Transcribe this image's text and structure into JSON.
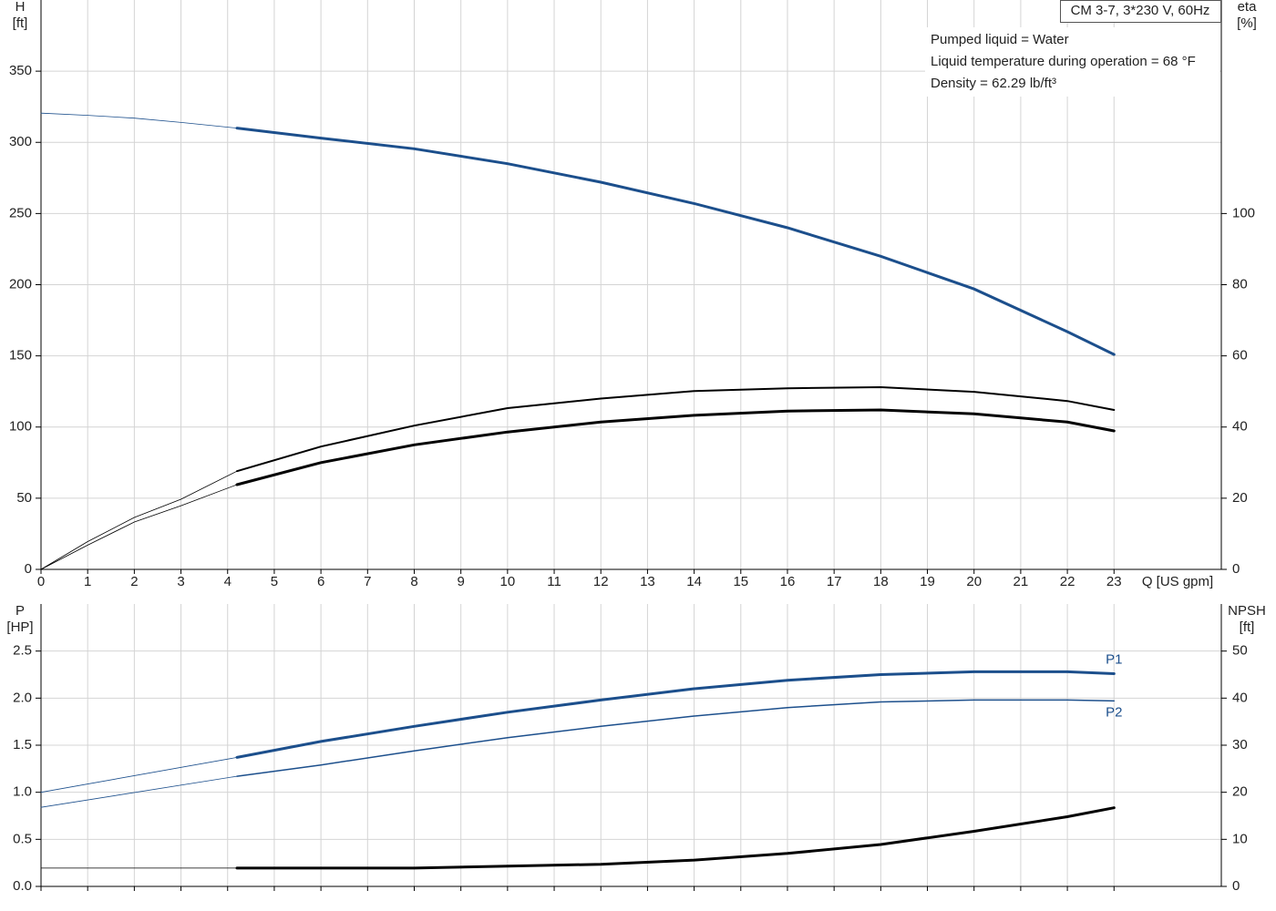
{
  "info": {
    "model": "CM 3-7, 3*230 V, 60Hz",
    "lines": [
      "Pumped liquid = Water",
      "Liquid temperature during operation = 68 °F",
      "Density = 62.29 lb/ft³"
    ]
  },
  "chart_data": [
    {
      "type": "line",
      "y_label": [
        "H",
        "[ft]"
      ],
      "y2_label": [
        "eta",
        "[%]"
      ],
      "x_label": "Q [US gpm]",
      "x": [
        0,
        1,
        2,
        3,
        4.2,
        6,
        8,
        10,
        12,
        14,
        16,
        18,
        20,
        22,
        23
      ],
      "xlim": [
        0,
        25.3
      ],
      "xticks": [
        0,
        1,
        2,
        3,
        4,
        5,
        6,
        7,
        8,
        9,
        10,
        11,
        12,
        13,
        14,
        15,
        16,
        17,
        18,
        19,
        20,
        21,
        22,
        23
      ],
      "show_xtick_labels": true,
      "ylim": [
        0,
        400
      ],
      "yticks": [
        0,
        50,
        100,
        150,
        200,
        250,
        300,
        350
      ],
      "y2lim": [
        0,
        160
      ],
      "y2ticks": [
        0,
        20,
        40,
        60,
        80,
        100
      ],
      "grid": true,
      "series": [
        {
          "color": "#1c4f8c",
          "line_width": 0.8,
          "values": [
            320.5,
            319,
            317,
            314,
            310,
            null,
            null,
            null,
            null,
            null,
            null,
            null,
            null,
            null,
            null
          ]
        },
        {
          "color": "#1c4f8c",
          "line_width": 3,
          "values": [
            null,
            null,
            null,
            null,
            310,
            303,
            295.5,
            285,
            272,
            257,
            240,
            220,
            197,
            167,
            151
          ]
        },
        {
          "color": "#000000",
          "line_width": 0.8,
          "axis": "y2",
          "values": [
            0,
            7.8,
            14.6,
            19.7,
            27.6,
            null,
            null,
            null,
            null,
            null,
            null,
            null,
            null,
            null,
            null
          ]
        },
        {
          "color": "#000000",
          "line_width": 2,
          "axis": "y2",
          "values": [
            null,
            null,
            null,
            null,
            27.6,
            34.5,
            40.4,
            45.3,
            48,
            50.1,
            50.9,
            51.2,
            49.9,
            47.3,
            44.8
          ]
        },
        {
          "color": "#000000",
          "line_width": 0.8,
          "axis": "y2",
          "values": [
            0,
            6.8,
            13.3,
            17.9,
            23.8,
            null,
            null,
            null,
            null,
            null,
            null,
            null,
            null,
            null,
            null
          ]
        },
        {
          "color": "#000000",
          "line_width": 3,
          "axis": "y2",
          "values": [
            null,
            null,
            null,
            null,
            23.8,
            30,
            35,
            38.6,
            41.4,
            43.3,
            44.5,
            44.8,
            43.7,
            41.4,
            38.9
          ]
        }
      ]
    },
    {
      "type": "line",
      "y_label": [
        "P",
        "[HP]"
      ],
      "y2_label": [
        "NPSH",
        "[ft]"
      ],
      "x": [
        0,
        4.2,
        6,
        8,
        10,
        12,
        14,
        16,
        18,
        20,
        22,
        23
      ],
      "xlim": [
        0,
        25.3
      ],
      "xticks": [
        0,
        1,
        2,
        3,
        4,
        5,
        6,
        7,
        8,
        9,
        10,
        11,
        12,
        13,
        14,
        15,
        16,
        17,
        18,
        19,
        20,
        21,
        22,
        23
      ],
      "show_xtick_labels": false,
      "ylim": [
        0,
        3
      ],
      "yticks": [
        {
          "value": 0,
          "label": "0.0"
        },
        0.5,
        {
          "value": 1,
          "label": "1.0"
        },
        1.5,
        {
          "value": 2,
          "label": "2.0"
        },
        2.5
      ],
      "y2lim": [
        0,
        60
      ],
      "y2ticks": [
        0,
        10,
        20,
        30,
        40,
        50
      ],
      "grid": true,
      "series": [
        {
          "color": "#1c4f8c",
          "line_width": 0.8,
          "values": [
            1.0,
            1.37,
            null,
            null,
            null,
            null,
            null,
            null,
            null,
            null,
            null,
            null
          ]
        },
        {
          "name": "P1",
          "label_position": "above",
          "color": "#1c4f8c",
          "line_width": 3,
          "values": [
            null,
            1.37,
            1.54,
            1.7,
            1.85,
            1.98,
            2.1,
            2.19,
            2.25,
            2.28,
            2.28,
            2.26
          ]
        },
        {
          "color": "#1c4f8c",
          "line_width": 0.8,
          "values": [
            0.84,
            1.17,
            null,
            null,
            null,
            null,
            null,
            null,
            null,
            null,
            null,
            null
          ]
        },
        {
          "name": "P2",
          "label_position": "below",
          "color": "#1c4f8c",
          "line_width": 1.5,
          "values": [
            null,
            1.17,
            1.29,
            1.44,
            1.58,
            1.7,
            1.81,
            1.9,
            1.96,
            1.98,
            1.98,
            1.97
          ]
        },
        {
          "color": "#000000",
          "line_width": 0.8,
          "axis": "y2",
          "values": [
            3.9,
            3.9,
            null,
            null,
            null,
            null,
            null,
            null,
            null,
            null,
            null,
            null
          ]
        },
        {
          "color": "#000000",
          "line_width": 3,
          "axis": "y2",
          "values": [
            null,
            3.9,
            3.9,
            3.9,
            4.3,
            4.7,
            5.6,
            7.0,
            8.9,
            11.7,
            14.8,
            16.7
          ]
        }
      ]
    }
  ]
}
